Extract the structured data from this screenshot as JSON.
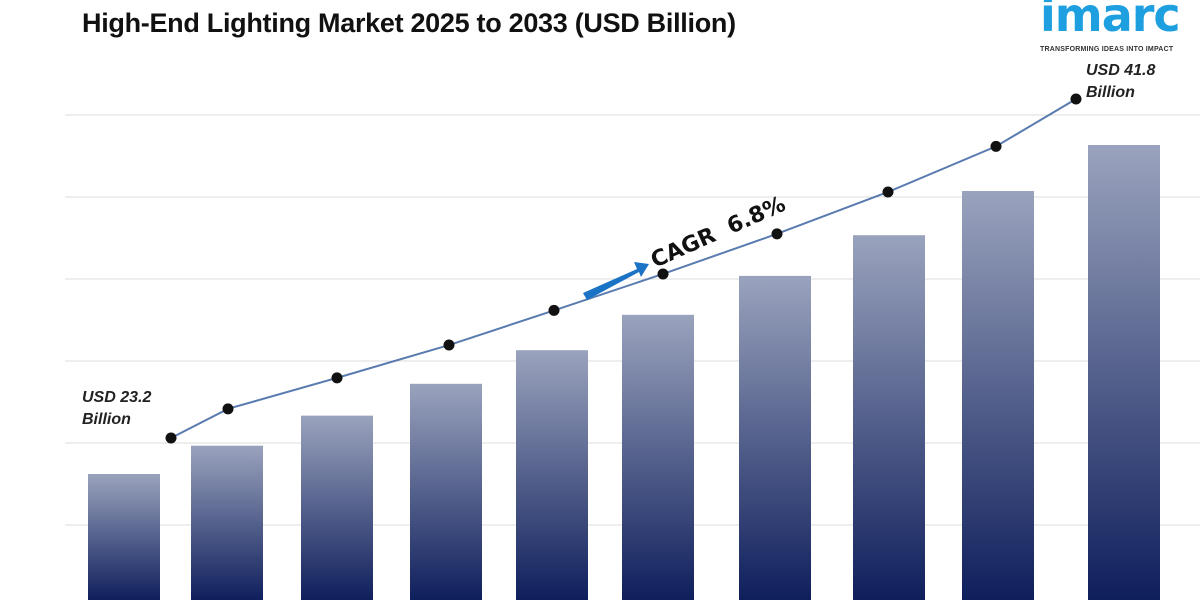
{
  "chart_data": {
    "type": "bar",
    "title": "High-End Lighting Market 2025 to 2033 (USD Billion)",
    "xlabel": "",
    "ylabel": "",
    "grid": true,
    "values": [
      23.2,
      24.8,
      26.5,
      28.3,
      30.2,
      32.2,
      34.4,
      36.7,
      39.2,
      41.8
    ],
    "trend_line": true,
    "annotations": {
      "start": [
        "USD 23.2",
        "Billion"
      ],
      "end": [
        "USD 41.8",
        "Billion"
      ],
      "cagr": "CAGR  6.8%"
    },
    "colors": {
      "bar_top": "#9aa3bd",
      "bar_bottom": "#0f1f5c",
      "line": "#5a7bb0",
      "arrow": "#1a73c4",
      "point": "#111111"
    }
  },
  "logo": {
    "brand": "imarc",
    "tagline": "TRANSFORMING IDEAS INTO IMPACT"
  }
}
